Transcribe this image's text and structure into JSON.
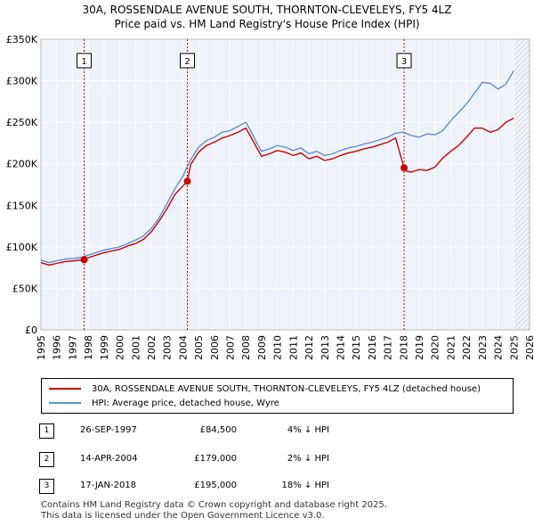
{
  "title_line1": "30A, ROSSENDALE AVENUE SOUTH, THORNTON-CLEVELEYS, FY5 4LZ",
  "title_line2": "Price paid vs. HM Land Registry's House Price Index (HPI)",
  "colors": {
    "price_line": "#cc0000",
    "hpi_line": "#5b8ed6",
    "background": "#eef2fb",
    "grid": "#ffffff",
    "marker_line": "#cc0000"
  },
  "legend": {
    "price_label": "30A, ROSSENDALE AVENUE SOUTH, THORNTON-CLEVELEYS, FY5 4LZ (detached house)",
    "hpi_label": "HPI: Average price, detached house, Wyre"
  },
  "sales": [
    {
      "num": "1",
      "date": "26-SEP-1997",
      "price": "£84,500",
      "pct": "4% ↓ HPI"
    },
    {
      "num": "2",
      "date": "14-APR-2004",
      "price": "£179,000",
      "pct": "2% ↓ HPI"
    },
    {
      "num": "3",
      "date": "17-JAN-2018",
      "price": "£195,000",
      "pct": "18% ↓ HPI"
    }
  ],
  "footer": {
    "line1": "Contains HM Land Registry data © Crown copyright and database right 2025.",
    "line2": "This data is licensed under the Open Government Licence v3.0."
  },
  "chart_data": {
    "type": "line",
    "title": "Price paid vs. HM Land Registry's House Price Index (HPI)",
    "xlabel": "",
    "ylabel": "",
    "xlim": [
      1995,
      2026
    ],
    "ylim": [
      0,
      350000
    ],
    "x_ticks": [
      1995,
      1996,
      1997,
      1998,
      1999,
      2000,
      2001,
      2002,
      2003,
      2004,
      2005,
      2006,
      2007,
      2008,
      2009,
      2010,
      2011,
      2012,
      2013,
      2014,
      2015,
      2016,
      2017,
      2018,
      2019,
      2020,
      2021,
      2022,
      2023,
      2024,
      2025,
      2026
    ],
    "y_ticks": [
      0,
      50000,
      100000,
      150000,
      200000,
      250000,
      300000,
      350000
    ],
    "y_tick_labels": [
      "£0",
      "£50K",
      "£100K",
      "£150K",
      "£200K",
      "£250K",
      "£300K",
      "£350K"
    ],
    "future_hatch_from": 2025.0,
    "series": [
      {
        "name": "HPI: Average price, detached house, Wyre",
        "x": [
          1995.0,
          1995.5,
          1996.0,
          1996.5,
          1997.0,
          1997.5,
          1998.0,
          1998.5,
          1999.0,
          1999.5,
          2000.0,
          2000.5,
          2001.0,
          2001.5,
          2002.0,
          2002.5,
          2003.0,
          2003.5,
          2004.0,
          2004.5,
          2005.0,
          2005.5,
          2006.0,
          2006.5,
          2007.0,
          2007.5,
          2008.0,
          2008.3,
          2008.7,
          2009.0,
          2009.5,
          2010.0,
          2010.5,
          2011.0,
          2011.5,
          2012.0,
          2012.5,
          2013.0,
          2013.5,
          2014.0,
          2014.5,
          2015.0,
          2015.5,
          2016.0,
          2016.5,
          2017.0,
          2017.5,
          2018.0,
          2018.5,
          2019.0,
          2019.5,
          2020.0,
          2020.5,
          2021.0,
          2021.5,
          2022.0,
          2022.5,
          2023.0,
          2023.5,
          2024.0,
          2024.5,
          2025.0
        ],
        "values": [
          84000,
          81000,
          83000,
          85000,
          86000,
          87000,
          90000,
          93000,
          96000,
          98000,
          100000,
          104000,
          108000,
          113000,
          122000,
          135000,
          152000,
          170000,
          185000,
          205000,
          220000,
          228000,
          232000,
          238000,
          240000,
          245000,
          250000,
          240000,
          225000,
          215000,
          218000,
          222000,
          220000,
          216000,
          219000,
          212000,
          215000,
          210000,
          212000,
          216000,
          219000,
          221000,
          224000,
          226000,
          229000,
          232000,
          237000,
          238000,
          234000,
          232000,
          236000,
          235000,
          240000,
          252000,
          262000,
          272000,
          285000,
          298000,
          297000,
          290000,
          296000,
          312000
        ]
      },
      {
        "name": "30A, ROSSENDALE AVENUE SOUTH, THORNTON-CLEVELEYS, FY5 4LZ (detached house)",
        "x": [
          1995.0,
          1995.5,
          1996.0,
          1996.5,
          1997.0,
          1997.74,
          1998.0,
          1998.5,
          1999.0,
          1999.5,
          2000.0,
          2000.5,
          2001.0,
          2001.5,
          2002.0,
          2002.5,
          2003.0,
          2003.5,
          2004.29,
          2004.5,
          2005.0,
          2005.5,
          2006.0,
          2006.5,
          2007.0,
          2007.5,
          2008.0,
          2008.3,
          2008.7,
          2009.0,
          2009.5,
          2010.0,
          2010.5,
          2011.0,
          2011.5,
          2012.0,
          2012.5,
          2013.0,
          2013.5,
          2014.0,
          2014.5,
          2015.0,
          2015.5,
          2016.0,
          2016.5,
          2017.0,
          2017.5,
          2018.04,
          2018.2,
          2018.5,
          2019.0,
          2019.5,
          2020.0,
          2020.5,
          2021.0,
          2021.5,
          2022.0,
          2022.5,
          2023.0,
          2023.5,
          2024.0,
          2024.5,
          2025.0
        ],
        "values": [
          81000,
          78000,
          80000,
          82000,
          83000,
          84500,
          87000,
          90000,
          93000,
          95000,
          97000,
          101000,
          104000,
          109000,
          118000,
          131000,
          146000,
          163000,
          179000,
          199000,
          214000,
          222000,
          226000,
          231000,
          234000,
          238000,
          243000,
          233000,
          219000,
          209000,
          212000,
          216000,
          214000,
          210000,
          213000,
          206000,
          209000,
          204000,
          206000,
          210000,
          213000,
          215000,
          218000,
          220000,
          223000,
          226000,
          231000,
          195000,
          191000,
          190000,
          193000,
          192000,
          196000,
          207000,
          215000,
          222000,
          232000,
          243000,
          243000,
          238000,
          241000,
          250000,
          255000
        ]
      }
    ],
    "sale_markers": [
      {
        "label": "1",
        "x": 1997.74,
        "value": 84500
      },
      {
        "label": "2",
        "x": 2004.29,
        "value": 179000
      },
      {
        "label": "3",
        "x": 2018.04,
        "value": 195000
      }
    ]
  }
}
